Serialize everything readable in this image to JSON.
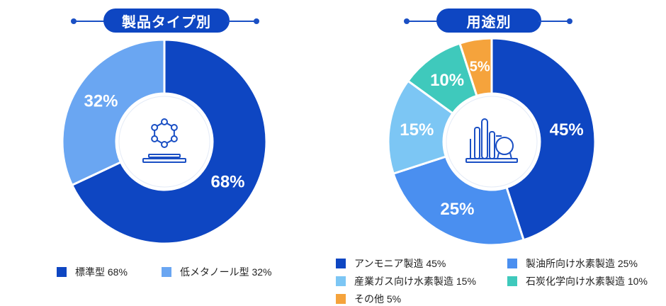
{
  "chart_data": [
    {
      "type": "pie",
      "title": "製品タイプ別",
      "categories": [
        "標準型",
        "低メタノール型"
      ],
      "values": [
        68,
        32
      ],
      "value_labels": [
        "68%",
        "32%"
      ],
      "legend_labels": [
        "標準型 68%",
        "低メタノール型 32%"
      ],
      "colors": [
        "#0e46c2",
        "#6aa6f2"
      ],
      "legend": "bottom",
      "center_icon": "molecule-icon"
    },
    {
      "type": "pie",
      "title": "用途別",
      "categories": [
        "アンモニア製造",
        "製油所向け水素製造",
        "産業ガス向け水素製造",
        "石炭化学向け水素製造",
        "その他"
      ],
      "values": [
        45,
        25,
        15,
        10,
        5
      ],
      "value_labels": [
        "45%",
        "25%",
        "15%",
        "10%",
        "5%"
      ],
      "legend_labels": [
        "アンモニア製造 45%",
        "製油所向け水素製造 25%",
        "産業ガス向け水素製造 15%",
        "石炭化学向け水素製造 10%",
        "その他 5%"
      ],
      "colors": [
        "#0e46c2",
        "#4a8ff0",
        "#7cc6f4",
        "#3fc9bc",
        "#f5a33c"
      ],
      "legend": "bottom",
      "center_icon": "refinery-icon"
    }
  ]
}
